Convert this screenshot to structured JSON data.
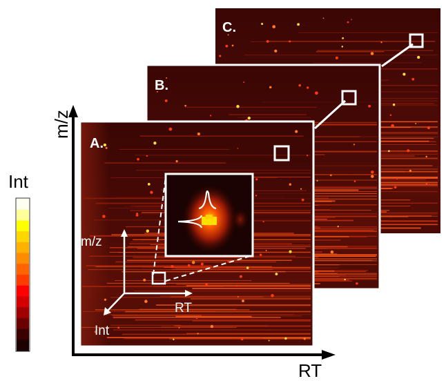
{
  "panels": [
    {
      "label": "C."
    },
    {
      "label": "B."
    },
    {
      "label": "A."
    }
  ],
  "axes": {
    "x_label": "RT",
    "y_label": "m/z"
  },
  "inner_axes": {
    "y_label": "m/z",
    "x_label": "RT",
    "z_label": "Int"
  },
  "colorbar": {
    "label": "Int",
    "colors": [
      "#fffff0",
      "#ffff99",
      "#ffff00",
      "#ffd700",
      "#ffb000",
      "#ff8c00",
      "#ff6400",
      "#ff3c00",
      "#ff0000",
      "#d40000",
      "#a00000",
      "#6a0000",
      "#3a0000",
      "#1a0000"
    ]
  }
}
